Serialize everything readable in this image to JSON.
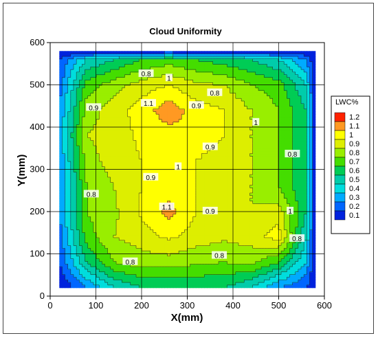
{
  "chart_data": {
    "type": "heatmap",
    "subtype": "filled-contour",
    "title": "Cloud Uniformity",
    "xlabel": "X(mm)",
    "ylabel": "Y(mm)",
    "xlim": [
      0,
      600
    ],
    "ylim": [
      0,
      600
    ],
    "xticks": [
      0,
      100,
      200,
      300,
      400,
      500,
      600
    ],
    "yticks": [
      0,
      100,
      200,
      300,
      400,
      500,
      600
    ],
    "grid": true,
    "legend": {
      "title": "LWC%",
      "placement": "right",
      "levels": [
        0.1,
        0.2,
        0.3,
        0.4,
        0.5,
        0.6,
        0.7,
        0.8,
        0.9,
        1,
        1.1,
        1.2
      ],
      "colors": [
        "#0022dd",
        "#0066ff",
        "#00aaff",
        "#00dddd",
        "#00ccaa",
        "#00cc55",
        "#44dd00",
        "#99ee00",
        "#ddee00",
        "#ffff00",
        "#ff9922",
        "#ff2200"
      ]
    },
    "grid_x": [
      20,
      80,
      140,
      200,
      260,
      320,
      380,
      440,
      500,
      560,
      580
    ],
    "grid_y": [
      20,
      80,
      140,
      200,
      260,
      320,
      380,
      440,
      500,
      560,
      580
    ],
    "z": [
      [
        0.1,
        0.3,
        0.5,
        0.6,
        0.6,
        0.6,
        0.6,
        0.5,
        0.3,
        0.2,
        0.1
      ],
      [
        0.2,
        0.6,
        0.8,
        0.85,
        0.85,
        0.82,
        0.8,
        0.82,
        0.7,
        0.4,
        0.1
      ],
      [
        0.25,
        0.75,
        0.9,
        0.95,
        1.02,
        0.95,
        0.92,
        0.95,
        1.05,
        0.5,
        0.1
      ],
      [
        0.3,
        0.8,
        0.88,
        1.02,
        1.14,
        1.0,
        0.93,
        0.9,
        0.95,
        0.6,
        0.1
      ],
      [
        0.3,
        0.8,
        0.9,
        1.0,
        1.04,
        1.0,
        0.95,
        0.9,
        0.8,
        0.6,
        0.1
      ],
      [
        0.3,
        0.85,
        0.95,
        1.0,
        1.05,
        1.0,
        0.92,
        0.9,
        0.8,
        0.6,
        0.1
      ],
      [
        0.35,
        0.9,
        0.95,
        1.02,
        1.06,
        1.08,
        1.0,
        0.9,
        0.8,
        0.6,
        0.1
      ],
      [
        0.3,
        0.85,
        0.95,
        1.05,
        1.16,
        1.05,
        1.0,
        0.9,
        0.8,
        0.6,
        0.1
      ],
      [
        0.25,
        0.75,
        0.85,
        0.95,
        1.0,
        0.92,
        0.9,
        0.8,
        0.75,
        0.5,
        0.1
      ],
      [
        0.2,
        0.5,
        0.6,
        0.7,
        0.75,
        0.7,
        0.65,
        0.6,
        0.5,
        0.3,
        0.1
      ],
      [
        0.1,
        0.1,
        0.1,
        0.1,
        0.1,
        0.1,
        0.1,
        0.1,
        0.1,
        0.1,
        0.1
      ]
    ],
    "contour_labels": [
      {
        "text": "0.8",
        "x": 210,
        "y": 525
      },
      {
        "text": "1",
        "x": 260,
        "y": 515
      },
      {
        "text": "0.8",
        "x": 360,
        "y": 480
      },
      {
        "text": "0.9",
        "x": 95,
        "y": 445
      },
      {
        "text": "1.1",
        "x": 215,
        "y": 455
      },
      {
        "text": "0.9",
        "x": 320,
        "y": 450
      },
      {
        "text": "1",
        "x": 450,
        "y": 410
      },
      {
        "text": "0.9",
        "x": 350,
        "y": 352
      },
      {
        "text": "0.8",
        "x": 530,
        "y": 335
      },
      {
        "text": "1",
        "x": 280,
        "y": 305
      },
      {
        "text": "0.9",
        "x": 220,
        "y": 280
      },
      {
        "text": "0.8",
        "x": 90,
        "y": 240
      },
      {
        "text": "1.1",
        "x": 255,
        "y": 210
      },
      {
        "text": "0.9",
        "x": 350,
        "y": 200
      },
      {
        "text": "1",
        "x": 525,
        "y": 200
      },
      {
        "text": "0.8",
        "x": 540,
        "y": 135
      },
      {
        "text": "0.8",
        "x": 370,
        "y": 95
      },
      {
        "text": "0.8",
        "x": 175,
        "y": 80
      }
    ]
  }
}
